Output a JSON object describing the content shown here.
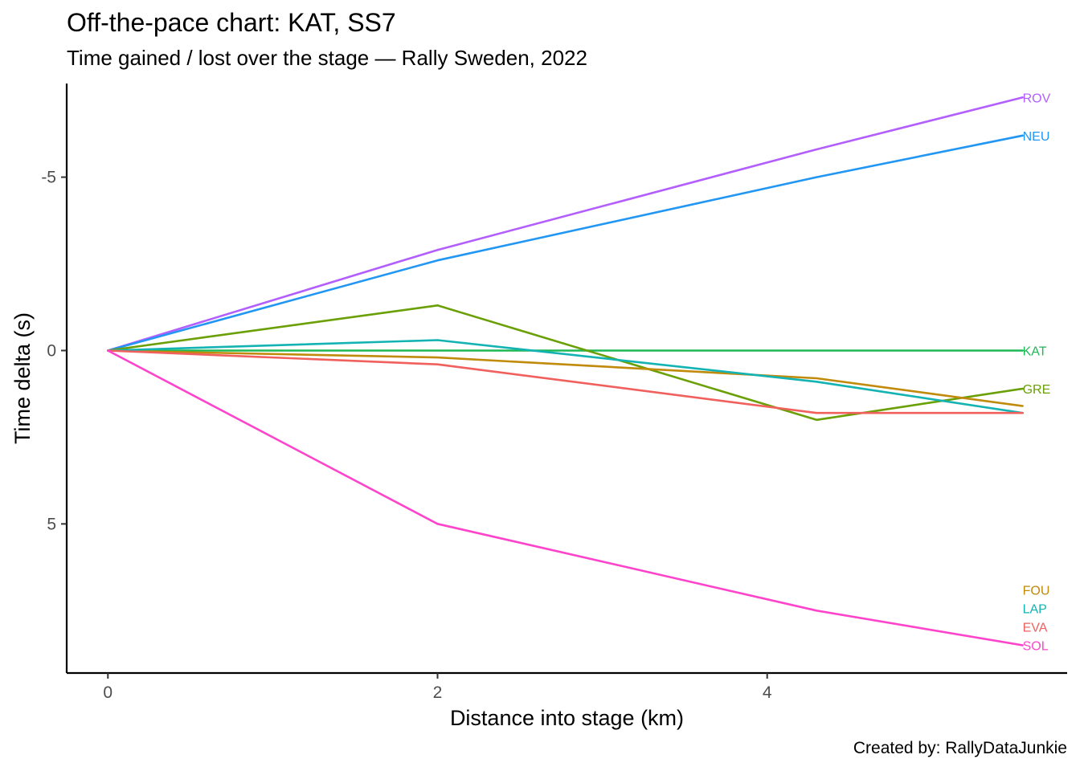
{
  "title": "Off-the-pace chart: KAT, SS7",
  "subtitle": "Time gained / lost over the stage — Rally Sweden, 2022",
  "caption": "Created by: RallyDataJunkie",
  "chart_data": {
    "type": "line",
    "title": "Off-the-pace chart: KAT, SS7",
    "subtitle": "Time gained / lost over the stage — Rally Sweden, 2022",
    "xlabel": "Distance into stage (km)",
    "ylabel": "Time delta (s)",
    "xlim": [
      -0.25,
      5.82
    ],
    "ylim": [
      -7.7,
      9.3
    ],
    "y_reversed": true,
    "x_ticks": [
      0,
      2,
      4
    ],
    "y_ticks": [
      -5,
      0,
      5
    ],
    "grid": false,
    "legend": "direct labels at line ends",
    "x": [
      0,
      2,
      4.3,
      5.55
    ],
    "series": [
      {
        "name": "ROV",
        "color": "#b35fff",
        "values": [
          0,
          -2.9,
          -5.8,
          -7.3
        ]
      },
      {
        "name": "NEU",
        "color": "#2196f3",
        "values": [
          0,
          -2.6,
          -5.0,
          -6.2
        ]
      },
      {
        "name": "KAT",
        "color": "#1db954",
        "values": [
          0,
          0,
          0,
          0
        ]
      },
      {
        "name": "GRE",
        "color": "#6aa005",
        "values": [
          0,
          -1.3,
          2.0,
          1.1
        ]
      },
      {
        "name": "FOU",
        "color": "#c08a0b",
        "values": [
          0,
          0.2,
          0.8,
          1.6
        ]
      },
      {
        "name": "LAP",
        "color": "#14b3b3",
        "values": [
          0,
          -0.3,
          0.9,
          1.8
        ]
      },
      {
        "name": "EVA",
        "color": "#f0605d",
        "values": [
          0,
          0.4,
          1.8,
          1.8
        ]
      },
      {
        "name": "SOL",
        "color": "#ff44cc",
        "values": [
          0,
          5.0,
          7.5,
          8.5
        ]
      }
    ]
  }
}
